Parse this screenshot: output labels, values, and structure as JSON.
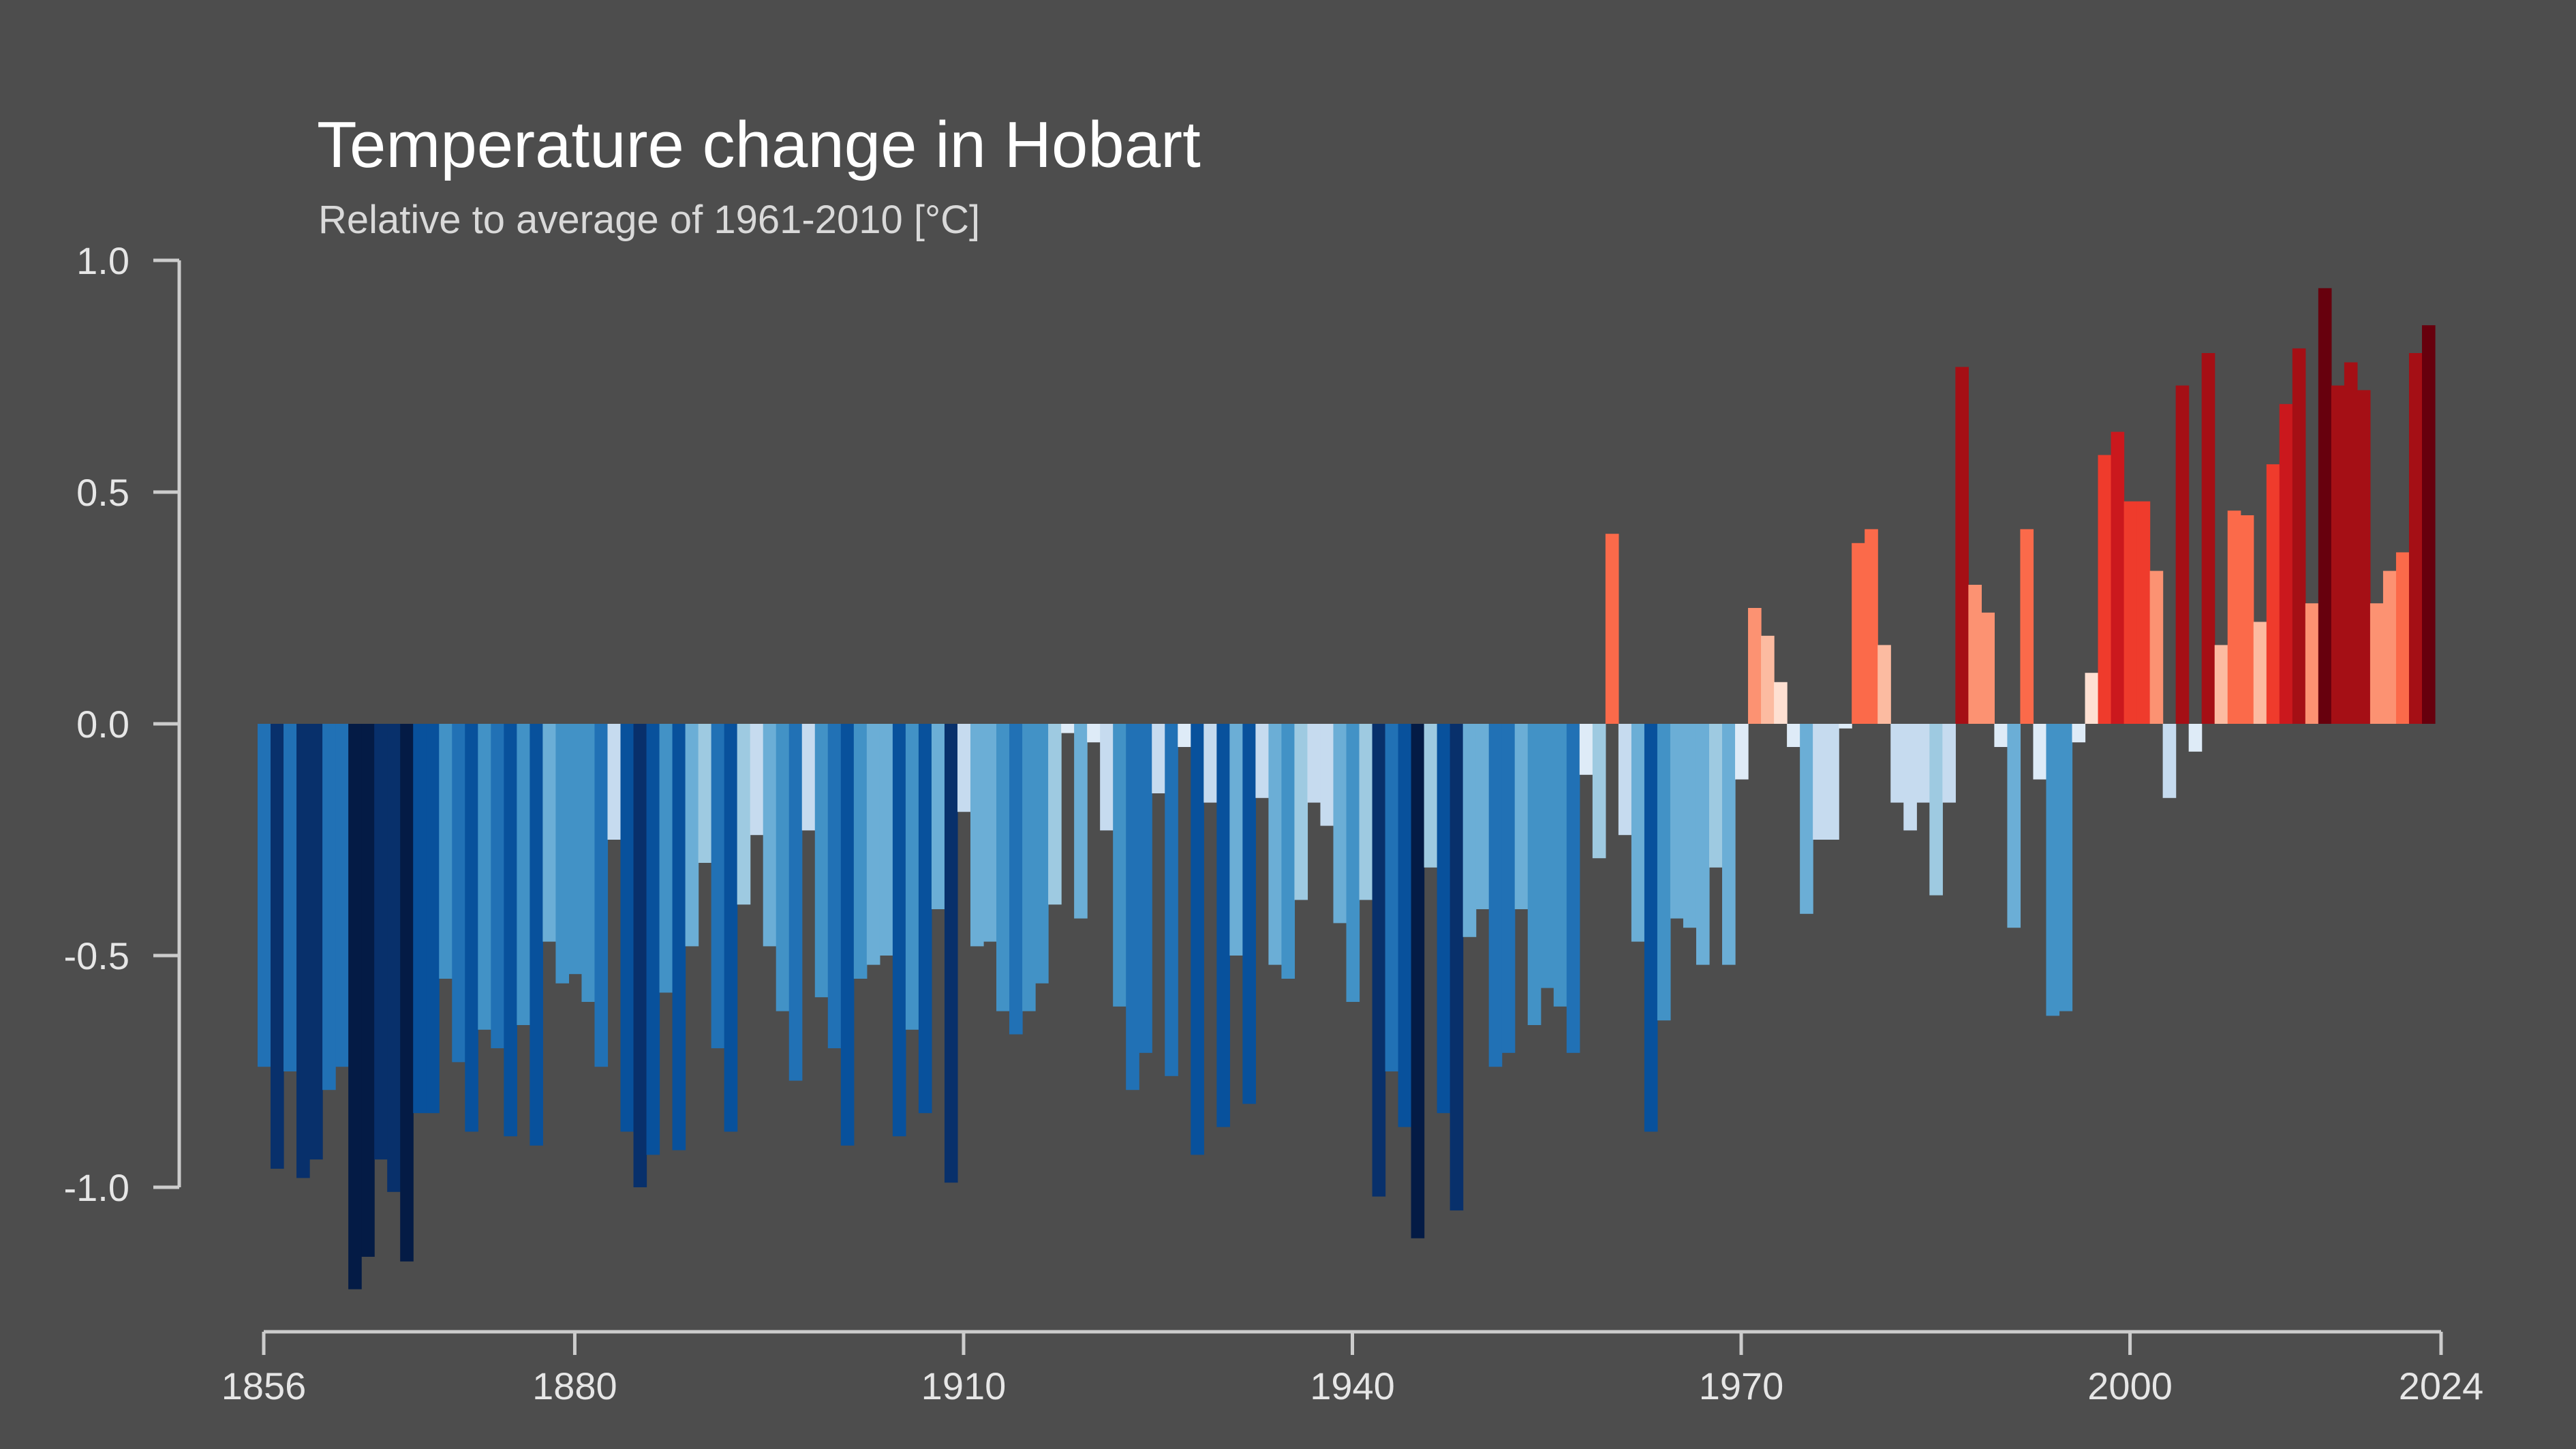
{
  "chart_data": {
    "type": "bar",
    "title": "Temperature change in Hobart",
    "subtitle": "Relative to average of 1961-2010  [°C]",
    "xlabel": "",
    "ylabel": "",
    "xlim": [
      1856,
      2024
    ],
    "ylim": [
      -1.25,
      1.0
    ],
    "x_ticks": [
      1856,
      1880,
      1910,
      1940,
      1970,
      2000,
      2024
    ],
    "y_ticks": [
      1.0,
      0.5,
      0.0,
      -0.5,
      -1.0
    ],
    "y_tick_labels": [
      "1.0",
      "0.5",
      "0.0",
      "-0.5",
      "-1.0"
    ],
    "grid": false,
    "legend": "none",
    "color_scale": {
      "negative": [
        "#deebf7",
        "#c6dbef",
        "#9ecae1",
        "#6baed6",
        "#4292c6",
        "#2171b5",
        "#08519c",
        "#08306b",
        "#041b45"
      ],
      "positive": [
        "#fee0d2",
        "#fcbba1",
        "#fc9272",
        "#fb6a4a",
        "#ef3b2c",
        "#cb181d",
        "#a50f15",
        "#67000d"
      ]
    },
    "start_year": 1856,
    "values": [
      -0.74,
      -0.96,
      -0.75,
      -0.98,
      -0.94,
      -0.79,
      -0.74,
      -1.22,
      -1.15,
      -0.94,
      -1.01,
      -1.16,
      -0.84,
      -0.84,
      -0.55,
      -0.73,
      -0.88,
      -0.66,
      -0.7,
      -0.89,
      -0.65,
      -0.91,
      -0.47,
      -0.56,
      -0.54,
      -0.6,
      -0.74,
      -0.25,
      -0.88,
      -1.0,
      -0.93,
      -0.58,
      -0.92,
      -0.48,
      -0.3,
      -0.7,
      -0.88,
      -0.39,
      -0.24,
      -0.48,
      -0.62,
      -0.77,
      -0.23,
      -0.59,
      -0.7,
      -0.91,
      -0.55,
      -0.52,
      -0.5,
      -0.89,
      -0.66,
      -0.84,
      -0.4,
      -0.99,
      -0.19,
      -0.48,
      -0.47,
      -0.62,
      -0.67,
      -0.62,
      -0.56,
      -0.39,
      -0.02,
      -0.42,
      -0.04,
      -0.23,
      -0.61,
      -0.79,
      -0.71,
      -0.15,
      -0.76,
      -0.05,
      -0.93,
      -0.17,
      -0.87,
      -0.5,
      -0.82,
      -0.16,
      -0.52,
      -0.55,
      -0.38,
      -0.17,
      -0.22,
      -0.43,
      -0.6,
      -0.38,
      -1.02,
      -0.75,
      -0.87,
      -1.11,
      -0.31,
      -0.84,
      -1.05,
      -0.46,
      -0.4,
      -0.74,
      -0.71,
      -0.4,
      -0.65,
      -0.57,
      -0.61,
      -0.71,
      -0.11,
      -0.29,
      0.41,
      -0.24,
      -0.47,
      -0.88,
      -0.64,
      -0.42,
      -0.44,
      -0.52,
      -0.31,
      -0.52,
      -0.12,
      0.25,
      0.19,
      0.09,
      -0.05,
      -0.41,
      -0.25,
      -0.25,
      -0.01,
      0.39,
      0.42,
      0.17,
      -0.17,
      -0.23,
      -0.17,
      -0.37,
      -0.17,
      0.77,
      0.3,
      0.24,
      -0.05,
      -0.44,
      0.42,
      -0.12,
      -0.63,
      -0.62,
      -0.04,
      0.11,
      0.58,
      0.63,
      0.48,
      0.48,
      0.33,
      -0.16,
      0.73,
      -0.06,
      0.8,
      0.17,
      0.46,
      0.45,
      0.22,
      0.56,
      0.69,
      0.81,
      0.26,
      0.94,
      0.73,
      0.78,
      0.72,
      0.26,
      0.33,
      0.37,
      0.8,
      0.86
    ]
  }
}
